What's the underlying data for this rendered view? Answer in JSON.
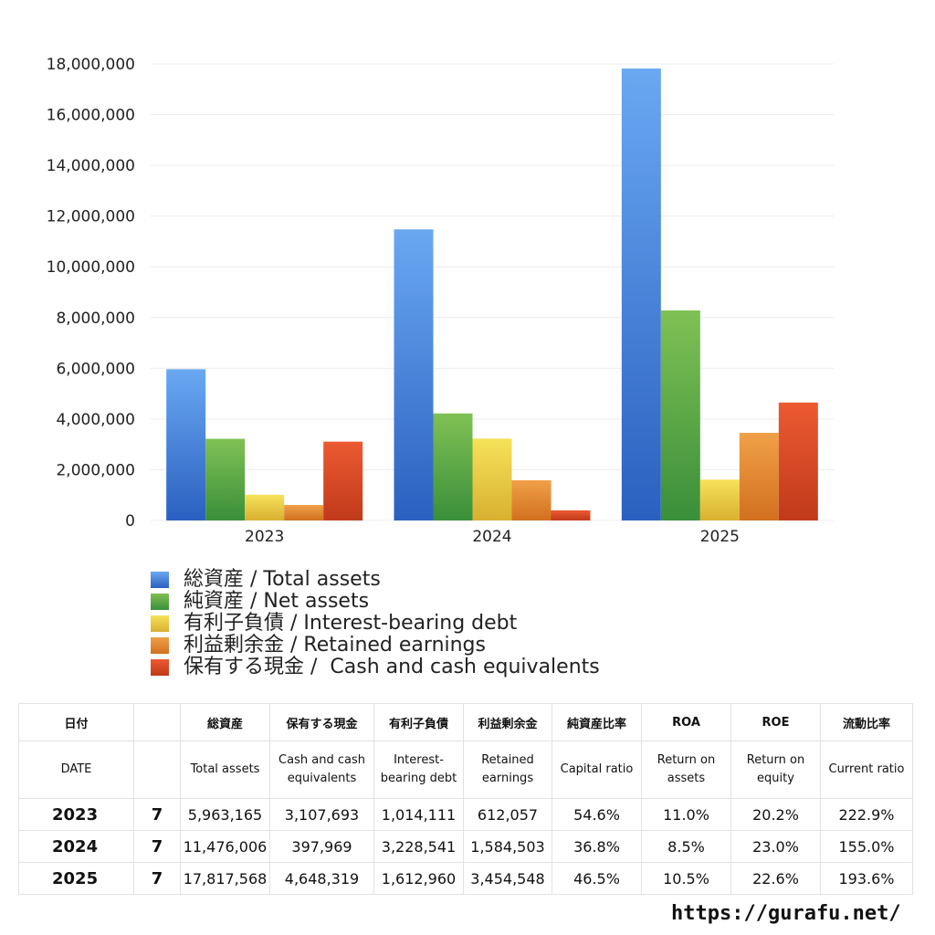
{
  "chart_data": {
    "type": "bar",
    "categories": [
      "2023",
      "2024",
      "2025"
    ],
    "y_tick_labels": [
      "0",
      "2,000,000",
      "4,000,000",
      "6,000,000",
      "8,000,000",
      "10,000,000",
      "12,000,000",
      "14,000,000",
      "16,000,000",
      "18,000,000"
    ],
    "ylim": [
      0,
      18000000
    ],
    "grid": true,
    "legend_position": "bottom",
    "series": [
      {
        "name": "総資産 / Total assets",
        "color_top": "#6aa8f2",
        "color_bottom": "#2a60c0",
        "values": [
          5963165,
          11476006,
          17817568
        ]
      },
      {
        "name": "純資産 / Net assets",
        "color_top": "#7fc154",
        "color_bottom": "#3a8f3a",
        "values": [
          3220000,
          4220000,
          8280000
        ]
      },
      {
        "name": "有利子負債 / Interest-bearing debt",
        "color_top": "#f6e25a",
        "color_bottom": "#d8b030",
        "values": [
          1014111,
          3228541,
          1612960
        ]
      },
      {
        "name": "利益剰余金 / Retained earnings",
        "color_top": "#f0a048",
        "color_bottom": "#d27020",
        "values": [
          612057,
          1584503,
          3454548
        ]
      },
      {
        "name": "保有する現金 /  Cash and cash equivalents",
        "color_top": "#ec5a32",
        "color_bottom": "#c03a1a",
        "values": [
          3107693,
          397969,
          4648319
        ]
      }
    ]
  },
  "table": {
    "headers_jp": [
      "日付",
      "",
      "総資産",
      "保有する現金",
      "有利子負債",
      "利益剰余金",
      "純資産比率",
      "ROA",
      "ROE",
      "流動比率"
    ],
    "headers_en": [
      "DATE",
      "",
      "Total assets",
      "Cash and cash equivalents",
      "Interest-bearing debt",
      "Retained earnings",
      "Capital ratio",
      "Return on assets",
      "Return on equity",
      "Current ratio"
    ],
    "rows": [
      [
        "2023",
        "7",
        "5,963,165",
        "3,107,693",
        "1,014,111",
        "612,057",
        "54.6%",
        "11.0%",
        "20.2%",
        "222.9%"
      ],
      [
        "2024",
        "7",
        "11,476,006",
        "397,969",
        "3,228,541",
        "1,584,503",
        "36.8%",
        "8.5%",
        "23.0%",
        "155.0%"
      ],
      [
        "2025",
        "7",
        "17,817,568",
        "4,648,319",
        "1,612,960",
        "3,454,548",
        "46.5%",
        "10.5%",
        "22.6%",
        "193.6%"
      ]
    ]
  },
  "site_url": "https://gurafu.net/"
}
